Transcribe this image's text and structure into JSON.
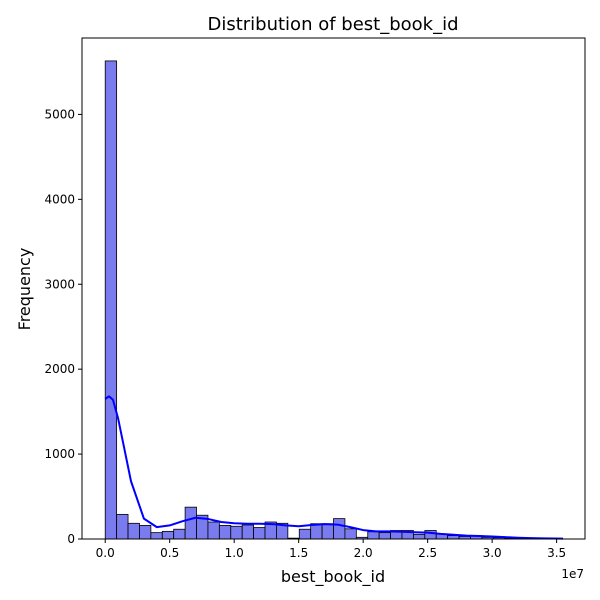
{
  "chart_data": {
    "type": "bar",
    "title": "Distribution of best_book_id",
    "xlabel": "best_book_id",
    "ylabel": "Frequency",
    "x_offset_label": "1e7",
    "xlim": [
      -0.18,
      3.72
    ],
    "ylim": [
      0,
      5900
    ],
    "x_ticks": [
      0.0,
      0.5,
      1.0,
      1.5,
      2.0,
      2.5,
      3.0,
      3.5
    ],
    "x_tick_labels": [
      "0.0",
      "0.5",
      "1.0",
      "1.5",
      "2.0",
      "2.5",
      "3.0",
      "3.5"
    ],
    "y_ticks": [
      0,
      1000,
      2000,
      3000,
      4000,
      5000
    ],
    "y_tick_labels": [
      "0",
      "1000",
      "2000",
      "3000",
      "4000",
      "5000"
    ],
    "bins": {
      "start": 0.0,
      "width": 0.0885,
      "values": [
        5630,
        290,
        185,
        160,
        75,
        90,
        115,
        375,
        280,
        200,
        160,
        150,
        165,
        135,
        200,
        185,
        10,
        115,
        180,
        180,
        240,
        120,
        20,
        85,
        75,
        100,
        100,
        55,
        100,
        60,
        40,
        30,
        40,
        20,
        15,
        10,
        5,
        5,
        5,
        5
      ]
    },
    "kde": {
      "x": [
        0.0,
        0.03,
        0.06,
        0.1,
        0.15,
        0.2,
        0.3,
        0.4,
        0.5,
        0.6,
        0.7,
        0.8,
        0.9,
        1.0,
        1.1,
        1.2,
        1.3,
        1.4,
        1.5,
        1.6,
        1.7,
        1.8,
        1.9,
        2.0,
        2.1,
        2.2,
        2.3,
        2.4,
        2.5,
        2.6,
        2.7,
        2.8,
        2.9,
        3.0,
        3.1,
        3.2,
        3.3,
        3.4,
        3.55
      ],
      "y": [
        1650,
        1680,
        1640,
        1420,
        1050,
        680,
        240,
        140,
        160,
        210,
        250,
        235,
        200,
        185,
        180,
        180,
        175,
        160,
        150,
        165,
        175,
        170,
        140,
        105,
        90,
        90,
        85,
        80,
        75,
        60,
        50,
        40,
        35,
        30,
        22,
        15,
        10,
        8,
        5
      ]
    },
    "grid": false,
    "legend": "none",
    "colors": {
      "bar_fill": "#7b7bf0",
      "bar_edge": "#000000",
      "kde_line": "#0000ff"
    }
  }
}
